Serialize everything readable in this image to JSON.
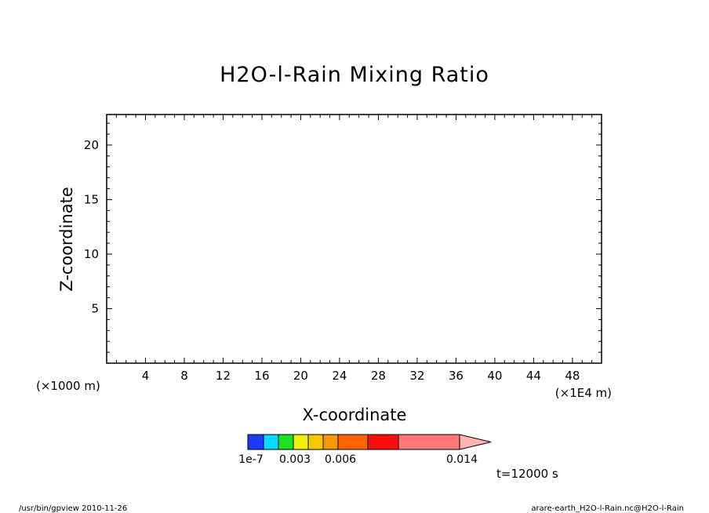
{
  "chart_data": {
    "type": "heatmap",
    "title": "H2O-l-Rain Mixing Ratio",
    "xlabel": "X-coordinate",
    "ylabel": "Z-coordinate",
    "x_unit_left": "(×1000 m)",
    "x_unit_right": "(×1E4 m)",
    "x_ticks": [
      "4",
      "8",
      "12",
      "16",
      "20",
      "24",
      "28",
      "32",
      "36",
      "40",
      "44",
      "48"
    ],
    "y_ticks": [
      "5",
      "10",
      "15",
      "20"
    ],
    "xlim": [
      0,
      51
    ],
    "ylim": [
      0,
      22.8
    ],
    "grid": false,
    "colorbar": {
      "colors": [
        "#1e3cff",
        "#00dcff",
        "#1ee11e",
        "#f0f000",
        "#f5c800",
        "#fa9600",
        "#ff6400",
        "#fa0f0f",
        "#ff7878",
        "#ffb4b4"
      ],
      "labels": [
        "1e-7",
        "0.003",
        "0.006",
        "0.014"
      ]
    },
    "time_label": "t=12000 s"
  },
  "footer": {
    "left": "/usr/bin/gpview   2010-11-26",
    "right": "arare-earth_H2O-l-Rain.nc@H2O-l-Rain"
  }
}
